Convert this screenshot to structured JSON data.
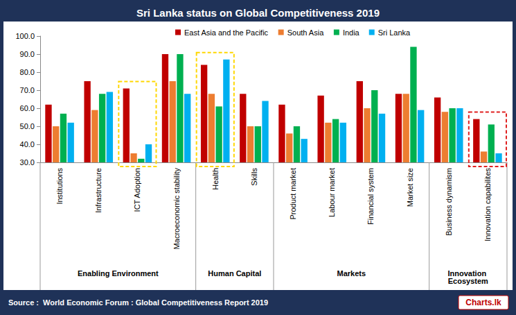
{
  "chart_data": {
    "type": "bar",
    "title": "Sri Lanka status on Global Competitiveness 2019",
    "categories": [
      "Institutions",
      "Infrastructure",
      "ICT Adoption",
      "Macroeconomic stability",
      "Health",
      "Skills",
      "Product market",
      "Labour market",
      "Financial system",
      "Market size",
      "Business dynamism",
      "Innovation capabilites"
    ],
    "category_groups": [
      {
        "label": "Enabling Environment",
        "size": 4
      },
      {
        "label": "Human Capital",
        "size": 2
      },
      {
        "label": "Markets",
        "size": 4
      },
      {
        "label": "Innovation Ecosystem",
        "size": 2
      }
    ],
    "series": [
      {
        "name": "East Asia and the Pacific",
        "color": "#c00000",
        "values": [
          62,
          75,
          71,
          90,
          84,
          68,
          62,
          67,
          75,
          68,
          66,
          54
        ]
      },
      {
        "name": "South Asia",
        "color": "#ed7d31",
        "values": [
          50,
          59,
          35,
          75,
          68,
          50,
          46,
          52,
          60,
          68,
          58,
          36
        ]
      },
      {
        "name": "India",
        "color": "#00b050",
        "values": [
          57,
          68,
          32,
          90,
          61,
          50,
          50,
          54,
          70,
          94,
          60,
          51
        ]
      },
      {
        "name": "Sri Lanka",
        "color": "#00b0f0",
        "values": [
          52,
          69,
          40,
          68,
          87,
          64,
          43,
          52,
          57,
          59,
          60,
          35
        ]
      }
    ],
    "ylim": [
      30,
      100
    ],
    "yticks": [
      {
        "value": 30,
        "label": "30.0"
      },
      {
        "value": 40,
        "label": "40.0"
      },
      {
        "value": 50,
        "label": "50.0"
      },
      {
        "value": 60,
        "label": "60.0"
      },
      {
        "value": 70,
        "label": "70.0"
      },
      {
        "value": 80,
        "label": "80.0"
      },
      {
        "value": 90,
        "label": "90.0"
      },
      {
        "value": 100,
        "label": "100.0"
      }
    ],
    "highlights": [
      {
        "category": "ICT Adoption",
        "color": "#ffd700"
      },
      {
        "category": "Health",
        "color": "#ffd700"
      },
      {
        "category": "Innovation capabilites",
        "color": "#e02020"
      }
    ],
    "source": "Source :  World Economic Forum : Global Competitiveness Report 2019",
    "logo": "Charts.lk",
    "legend": "top",
    "grid": false,
    "data_labels": false
  }
}
